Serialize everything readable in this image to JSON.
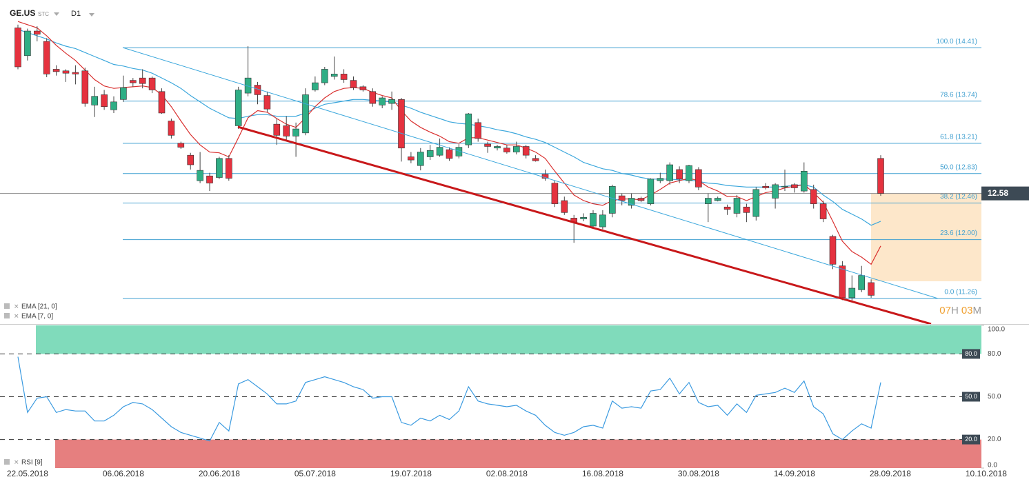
{
  "header": {
    "symbol": "GE.US",
    "instrument_type": "STC",
    "interval": "D1"
  },
  "chart_data": [
    {
      "type": "candlestick",
      "categories": [
        null,
        "22.05.2018",
        null,
        null,
        null,
        null,
        null,
        null,
        null,
        null,
        null,
        "06.06.2018",
        null,
        null,
        null,
        null,
        null,
        null,
        null,
        null,
        null,
        "20.06.2018",
        null,
        null,
        null,
        null,
        null,
        null,
        null,
        null,
        null,
        "05.07.2018",
        null,
        null,
        null,
        null,
        null,
        null,
        null,
        null,
        null,
        "19.07.2018",
        null,
        null,
        null,
        null,
        null,
        null,
        null,
        null,
        null,
        "02.08.2018",
        null,
        null,
        null,
        null,
        null,
        null,
        null,
        null,
        null,
        "16.08.2018",
        null,
        null,
        null,
        null,
        null,
        null,
        null,
        null,
        null,
        "30.08.2018",
        null,
        null,
        null,
        null,
        null,
        null,
        null,
        null,
        null,
        "14.09.2018",
        null,
        null,
        null,
        null,
        null,
        null,
        null,
        null,
        null,
        "28.09.2018",
        null,
        null,
        null,
        null,
        null,
        null,
        null,
        null,
        null,
        "10.10.2018"
      ],
      "open": [
        14.66,
        14.31,
        14.62,
        14.49,
        14.14,
        14.12,
        14.1,
        14.12,
        13.69,
        13.82,
        13.63,
        13.76,
        14.0,
        14.03,
        14.03,
        13.86,
        13.49,
        13.21,
        13.06,
        12.74,
        12.8,
        12.78,
        13.02,
        13.43,
        13.84,
        13.94,
        13.81,
        13.45,
        13.43,
        13.3,
        13.34,
        13.88,
        13.97,
        14.05,
        14.08,
        14.0,
        13.92,
        13.86,
        13.69,
        13.71,
        13.76,
        13.04,
        12.93,
        13.04,
        13.06,
        13.13,
        13.05,
        13.19,
        13.47,
        13.2,
        13.15,
        13.15,
        13.1,
        13.17,
        13.02,
        12.82,
        12.71,
        12.49,
        12.27,
        12.26,
        12.17,
        12.16,
        12.33,
        12.55,
        12.43,
        12.52,
        12.45,
        12.74,
        12.74,
        12.88,
        12.74,
        12.88,
        12.45,
        12.49,
        12.41,
        12.33,
        12.41,
        12.29,
        12.67,
        12.52,
        12.66,
        12.69,
        12.61,
        12.63,
        12.45,
        12.04,
        11.67,
        11.27,
        11.37,
        11.46,
        13.02,
        null,
        null,
        null,
        null,
        null,
        null,
        null,
        null,
        null,
        null,
        null
      ],
      "high": [
        14.7,
        14.65,
        14.68,
        14.53,
        14.19,
        14.14,
        14.19,
        14.16,
        13.92,
        13.88,
        13.8,
        14.06,
        14.03,
        14.14,
        14.05,
        13.9,
        13.52,
        13.23,
        13.09,
        13.1,
        12.84,
        13.04,
        13.06,
        13.92,
        14.43,
        13.98,
        13.86,
        13.52,
        13.55,
        13.47,
        13.9,
        14.05,
        14.17,
        14.3,
        14.14,
        14.05,
        13.94,
        13.9,
        13.8,
        13.86,
        13.78,
        13.1,
        13.15,
        13.19,
        13.27,
        13.16,
        13.2,
        13.59,
        13.52,
        13.23,
        13.19,
        13.19,
        13.23,
        13.19,
        13.06,
        12.88,
        12.74,
        12.54,
        12.31,
        12.33,
        12.37,
        12.37,
        12.69,
        12.58,
        12.58,
        12.54,
        12.77,
        12.84,
        12.97,
        12.92,
        12.94,
        12.91,
        12.58,
        12.54,
        12.44,
        12.56,
        12.45,
        12.66,
        12.71,
        12.71,
        12.88,
        12.71,
        12.97,
        12.69,
        12.49,
        12.06,
        11.73,
        11.55,
        11.67,
        11.5,
        13.06,
        null,
        null,
        null,
        null,
        null,
        null,
        null,
        null,
        null,
        null,
        null
      ],
      "low": [
        14.14,
        14.25,
        14.49,
        14.04,
        14.06,
        13.98,
        13.95,
        13.67,
        13.54,
        13.63,
        13.59,
        13.73,
        13.92,
        13.9,
        13.84,
        13.58,
        13.27,
        13.14,
        12.88,
        12.71,
        12.61,
        12.76,
        12.74,
        13.39,
        13.8,
        13.7,
        13.6,
        13.19,
        13.24,
        13.04,
        13.31,
        13.86,
        13.94,
        14.01,
        13.97,
        13.88,
        13.86,
        13.67,
        13.65,
        13.63,
        12.98,
        12.96,
        12.87,
        13.0,
        13.04,
        12.99,
        13.02,
        13.15,
        13.23,
        13.09,
        13.12,
        13.08,
        13.07,
        13.02,
        12.98,
        12.74,
        12.41,
        12.31,
        11.96,
        12.23,
        12.15,
        12.13,
        12.28,
        12.43,
        12.39,
        12.47,
        12.43,
        12.71,
        12.69,
        12.71,
        12.71,
        12.62,
        12.22,
        12.48,
        12.31,
        12.28,
        12.22,
        12.24,
        12.63,
        12.39,
        12.61,
        12.59,
        12.59,
        12.39,
        12.22,
        11.63,
        11.24,
        11.22,
        11.34,
        11.27,
        12.55,
        null,
        null,
        null,
        null,
        null,
        null,
        null,
        null,
        null,
        null,
        null
      ],
      "close": [
        14.17,
        14.62,
        14.58,
        14.08,
        14.11,
        14.09,
        14.08,
        13.71,
        13.8,
        13.67,
        13.73,
        13.91,
        13.97,
        13.96,
        13.88,
        13.59,
        13.31,
        13.16,
        12.94,
        12.87,
        12.71,
        13.02,
        12.77,
        13.88,
        14.03,
        13.82,
        13.64,
        13.31,
        13.3,
        13.39,
        13.82,
        13.97,
        14.14,
        14.08,
        14.01,
        13.91,
        13.88,
        13.71,
        13.78,
        13.76,
        13.15,
        13.0,
        13.1,
        13.12,
        13.16,
        13.02,
        13.16,
        13.58,
        13.27,
        13.17,
        13.17,
        13.1,
        13.17,
        13.06,
        12.99,
        12.77,
        12.45,
        12.34,
        12.22,
        12.28,
        12.33,
        12.31,
        12.67,
        12.49,
        12.52,
        12.49,
        12.76,
        12.77,
        12.94,
        12.76,
        12.93,
        12.66,
        12.52,
        12.52,
        12.38,
        12.52,
        12.34,
        12.63,
        12.65,
        12.69,
        12.67,
        12.65,
        12.86,
        12.45,
        12.26,
        11.69,
        11.27,
        11.39,
        11.55,
        11.3,
        12.58,
        null,
        null,
        null,
        null,
        null,
        null,
        null,
        null,
        null,
        null,
        null
      ],
      "up_color": "#2fae85",
      "down_color": "#e5323f",
      "series": [
        {
          "name": "EMA [21, 0]",
          "color": "#3ba7dc",
          "values": [
            14.64,
            14.6,
            14.56,
            14.52,
            14.47,
            14.43,
            14.4,
            14.35,
            14.3,
            14.25,
            14.2,
            14.18,
            14.15,
            14.13,
            14.09,
            14.03,
            13.97,
            13.9,
            13.81,
            13.73,
            13.65,
            13.59,
            13.53,
            13.52,
            13.55,
            13.57,
            13.57,
            13.55,
            13.55,
            13.55,
            13.59,
            13.65,
            13.7,
            13.72,
            13.74,
            13.76,
            13.76,
            13.75,
            13.74,
            13.73,
            13.69,
            13.65,
            13.6,
            13.56,
            13.52,
            13.48,
            13.46,
            13.45,
            13.43,
            13.41,
            13.38,
            13.36,
            13.33,
            13.29,
            13.26,
            13.22,
            13.16,
            13.1,
            13.04,
            12.97,
            12.93,
            12.89,
            12.87,
            12.83,
            12.81,
            12.78,
            12.76,
            12.76,
            12.76,
            12.75,
            12.75,
            12.73,
            12.71,
            12.7,
            12.68,
            12.67,
            12.66,
            12.66,
            12.66,
            12.66,
            12.67,
            12.68,
            12.69,
            12.66,
            12.56,
            12.48,
            12.38,
            12.32,
            12.26,
            12.18,
            12.23,
            null,
            null,
            null,
            null,
            null,
            null,
            null,
            null,
            null,
            null,
            null
          ]
        },
        {
          "name": "EMA [7, 0]",
          "color": "#d9302f",
          "values": [
            14.74,
            14.7,
            14.66,
            14.56,
            14.44,
            14.34,
            14.25,
            14.13,
            14.01,
            13.93,
            13.9,
            13.91,
            13.92,
            13.93,
            13.91,
            13.82,
            13.67,
            13.49,
            13.32,
            13.19,
            13.1,
            13.09,
            13.04,
            13.28,
            13.53,
            13.62,
            13.6,
            13.52,
            13.45,
            13.41,
            13.53,
            13.67,
            13.78,
            13.86,
            13.9,
            13.91,
            13.9,
            13.85,
            13.81,
            13.78,
            13.62,
            13.49,
            13.41,
            13.35,
            13.3,
            13.23,
            13.21,
            13.28,
            13.28,
            13.25,
            13.22,
            13.19,
            13.19,
            13.15,
            13.1,
            13.02,
            12.86,
            12.71,
            12.56,
            12.49,
            12.45,
            12.43,
            12.49,
            12.51,
            12.51,
            12.5,
            12.56,
            12.63,
            12.71,
            12.74,
            12.77,
            12.74,
            12.66,
            12.61,
            12.54,
            12.54,
            12.49,
            12.54,
            12.59,
            12.61,
            12.65,
            12.67,
            12.69,
            12.59,
            12.47,
            12.23,
            11.98,
            11.85,
            11.78,
            11.69,
            11.92,
            null,
            null,
            null,
            null,
            null,
            null,
            null,
            null,
            null,
            null,
            null
          ]
        }
      ],
      "fib_levels": [
        {
          "value": 14.41,
          "label": "100.0 (14.41)"
        },
        {
          "value": 13.74,
          "label": "78.6 (13.74)"
        },
        {
          "value": 13.21,
          "label": "61.8 (13.21)"
        },
        {
          "value": 12.83,
          "label": "50.0 (12.83)"
        },
        {
          "value": 12.46,
          "label": "38.2 (12.46)"
        },
        {
          "value": 12.0,
          "label": "23.6 (12.00)"
        },
        {
          "value": 11.26,
          "label": "0.0 (11.26)"
        }
      ],
      "fib_color": "#3f9fd0",
      "last_price": 12.58,
      "countdown": [
        "07",
        "H",
        "03",
        "M"
      ],
      "ylim": [
        10.94,
        14.75
      ]
    },
    {
      "type": "line",
      "series": [
        {
          "name": "RSI [9]",
          "color": "#3a9ae0",
          "values": [
            78,
            39,
            49,
            50,
            39,
            41,
            40,
            40,
            33,
            33,
            37,
            43,
            46,
            45,
            41,
            35,
            29,
            25,
            23,
            21,
            19,
            32,
            26,
            59,
            62,
            57,
            52,
            45,
            45,
            47,
            60,
            62,
            64,
            62,
            60,
            57,
            55,
            49,
            50,
            50,
            32,
            30,
            35,
            33,
            37,
            34,
            40,
            57,
            47,
            45,
            44,
            43,
            44,
            40,
            37,
            30,
            25,
            23,
            25,
            29,
            30,
            28,
            47,
            42,
            43,
            42,
            54,
            55,
            63,
            52,
            60,
            46,
            43,
            44,
            37,
            45,
            39,
            51,
            52,
            53,
            56,
            53,
            61,
            43,
            38,
            24,
            20,
            26,
            31,
            28,
            60,
            null,
            null,
            null,
            null,
            null,
            null,
            null,
            null,
            null,
            null,
            null
          ]
        }
      ],
      "zones": [
        {
          "from": 80,
          "to": 100,
          "color": "#80dbbb"
        },
        {
          "from": 0,
          "to": 20,
          "color": "#e67f7f"
        }
      ],
      "ylim": [
        0,
        100
      ],
      "yticks": [
        {
          "value": 100,
          "label": "100.0"
        },
        {
          "value": 80,
          "label": "80.0"
        },
        {
          "value": 50,
          "label": "50.0"
        },
        {
          "value": 20,
          "label": "20.0"
        },
        {
          "value": 0,
          "label": "0.0"
        }
      ]
    }
  ]
}
